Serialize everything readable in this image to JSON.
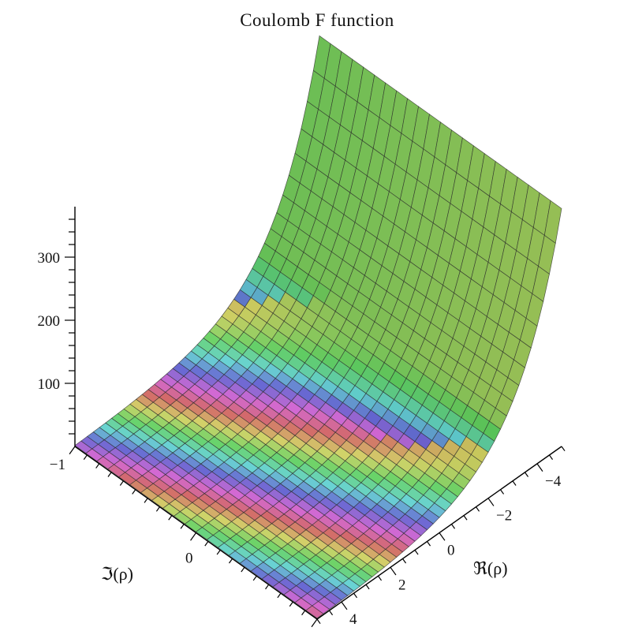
{
  "chart_data": {
    "type": "surface3d",
    "title": "Coulomb F function",
    "xlabel": "ℜ(ρ)",
    "ylabel": "ℑ(ρ)",
    "zlabel": "",
    "xlim": [
      -5,
      5
    ],
    "ylim": [
      -1,
      1
    ],
    "zlim": [
      0,
      380
    ],
    "x_ticks": [
      {
        "value": -4,
        "label": "−4"
      },
      {
        "value": -2,
        "label": "−2"
      },
      {
        "value": 0,
        "label": "0"
      },
      {
        "value": 2,
        "label": "2"
      },
      {
        "value": 4,
        "label": "4"
      }
    ],
    "y_ticks": [
      {
        "value": -1,
        "label": "−1"
      },
      {
        "value": 0,
        "label": "0"
      }
    ],
    "z_ticks": [
      {
        "value": 100,
        "label": "100"
      },
      {
        "value": 200,
        "label": "200"
      },
      {
        "value": 300,
        "label": "300"
      }
    ],
    "surface_peak": 380,
    "surface_growth_rate": 0.55,
    "color_shading": "hue by argument",
    "grid_divisions": {
      "x": 40,
      "y": 22
    }
  }
}
